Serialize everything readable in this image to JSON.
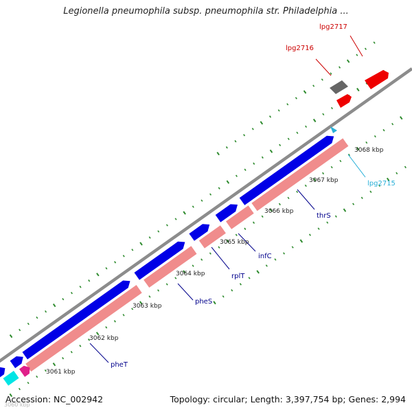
{
  "title": "Legionella pneumophila subsp. pneumophila str. Philadelphia ...",
  "footer": {
    "accession": "Accession: NC_002942",
    "stats": "Topology: circular; Length: 3,397,754 bp; Genes: 2,994"
  },
  "faint_scale_label": "3060 kbp",
  "colors": {
    "backbone": "#8c8c8c",
    "gene_forward": "#0000e6",
    "cds_pink": "#f08c8c",
    "tick": "#2e8b2e",
    "label_red": "#cc0000",
    "label_blue": "#00008b",
    "label_cyan": "#2ab0d8"
  },
  "scale_labels": [
    {
      "text": "3061 kbp",
      "kbp": 3061
    },
    {
      "text": "3062 kbp",
      "kbp": 3062
    },
    {
      "text": "3063 kbp",
      "kbp": 3063
    },
    {
      "text": "3064 kbp",
      "kbp": 3064
    },
    {
      "text": "3065 kbp",
      "kbp": 3065
    },
    {
      "text": "3066 kbp",
      "kbp": 3066
    },
    {
      "text": "3067 kbp",
      "kbp": 3067
    },
    {
      "text": "3068 kbp",
      "kbp": 3068
    }
  ],
  "gene_labels": [
    {
      "text": "pheT",
      "color": "#00008b"
    },
    {
      "text": "pheS",
      "color": "#00008b"
    },
    {
      "text": "rplT",
      "color": "#00008b"
    },
    {
      "text": "infC",
      "color": "#00008b"
    },
    {
      "text": "thrS",
      "color": "#00008b"
    },
    {
      "text": "lpg2715",
      "color": "#2ab0d8"
    },
    {
      "text": "lpg2716",
      "color": "#cc0000"
    },
    {
      "text": "lpg2717",
      "color": "#cc0000"
    }
  ]
}
